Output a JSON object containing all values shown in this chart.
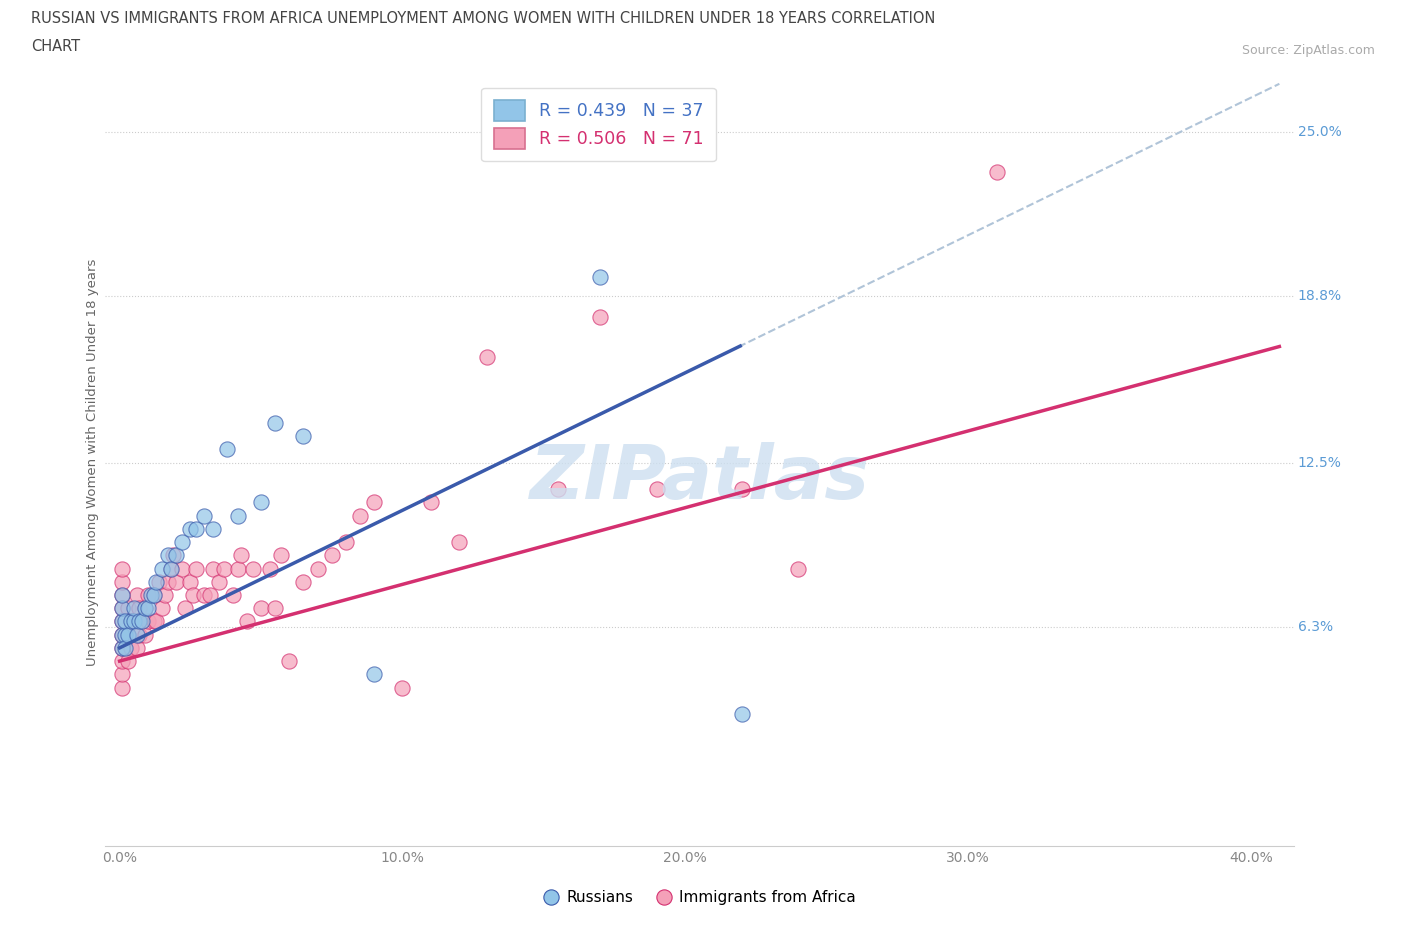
{
  "title_line1": "RUSSIAN VS IMMIGRANTS FROM AFRICA UNEMPLOYMENT AMONG WOMEN WITH CHILDREN UNDER 18 YEARS CORRELATION",
  "title_line2": "CHART",
  "source": "Source: ZipAtlas.com",
  "ylabel": "Unemployment Among Women with Children Under 18 years",
  "xlabel_ticks": [
    "0.0%",
    "10.0%",
    "20.0%",
    "30.0%",
    "40.0%"
  ],
  "xlabel_vals": [
    0.0,
    0.1,
    0.2,
    0.3,
    0.4
  ],
  "ylabel_right_labels": [
    "6.3%",
    "12.5%",
    "18.8%",
    "25.0%"
  ],
  "ylabel_right_vals": [
    0.063,
    0.125,
    0.188,
    0.25
  ],
  "ylim": [
    -0.02,
    0.27
  ],
  "xlim": [
    -0.005,
    0.415
  ],
  "blue_scatter_color": "#92c5e8",
  "blue_line_color": "#3a5aab",
  "blue_dashed_color": "#b0c4d8",
  "pink_scatter_color": "#f4a0b8",
  "pink_line_color": "#d43070",
  "watermark_color": "#cddff0",
  "right_label_color": "#5b9bd5",
  "russians_R": "0.439",
  "russians_N": "37",
  "africa_R": "0.506",
  "africa_N": "71",
  "russians_x": [
    0.001,
    0.001,
    0.001,
    0.001,
    0.001,
    0.002,
    0.002,
    0.002,
    0.003,
    0.004,
    0.005,
    0.005,
    0.006,
    0.007,
    0.008,
    0.009,
    0.01,
    0.011,
    0.012,
    0.013,
    0.015,
    0.017,
    0.018,
    0.02,
    0.022,
    0.025,
    0.027,
    0.03,
    0.033,
    0.038,
    0.042,
    0.05,
    0.055,
    0.065,
    0.09,
    0.17,
    0.22
  ],
  "russians_y": [
    0.055,
    0.06,
    0.065,
    0.07,
    0.075,
    0.06,
    0.065,
    0.055,
    0.06,
    0.065,
    0.065,
    0.07,
    0.06,
    0.065,
    0.065,
    0.07,
    0.07,
    0.075,
    0.075,
    0.08,
    0.085,
    0.09,
    0.085,
    0.09,
    0.095,
    0.1,
    0.1,
    0.105,
    0.1,
    0.13,
    0.105,
    0.11,
    0.14,
    0.135,
    0.045,
    0.195,
    0.03
  ],
  "africa_x": [
    0.001,
    0.001,
    0.001,
    0.001,
    0.001,
    0.001,
    0.001,
    0.001,
    0.001,
    0.001,
    0.003,
    0.003,
    0.003,
    0.004,
    0.004,
    0.006,
    0.006,
    0.006,
    0.007,
    0.007,
    0.008,
    0.009,
    0.009,
    0.01,
    0.01,
    0.012,
    0.012,
    0.013,
    0.014,
    0.015,
    0.016,
    0.017,
    0.018,
    0.019,
    0.02,
    0.022,
    0.023,
    0.025,
    0.026,
    0.027,
    0.03,
    0.032,
    0.033,
    0.035,
    0.037,
    0.04,
    0.042,
    0.043,
    0.045,
    0.047,
    0.05,
    0.053,
    0.055,
    0.057,
    0.06,
    0.065,
    0.07,
    0.075,
    0.08,
    0.085,
    0.09,
    0.1,
    0.11,
    0.12,
    0.13,
    0.155,
    0.17,
    0.19,
    0.22,
    0.24,
    0.31
  ],
  "africa_y": [
    0.04,
    0.045,
    0.05,
    0.055,
    0.06,
    0.065,
    0.07,
    0.075,
    0.08,
    0.085,
    0.05,
    0.06,
    0.07,
    0.055,
    0.065,
    0.055,
    0.065,
    0.075,
    0.06,
    0.07,
    0.065,
    0.06,
    0.07,
    0.065,
    0.075,
    0.065,
    0.075,
    0.065,
    0.08,
    0.07,
    0.075,
    0.08,
    0.085,
    0.09,
    0.08,
    0.085,
    0.07,
    0.08,
    0.075,
    0.085,
    0.075,
    0.075,
    0.085,
    0.08,
    0.085,
    0.075,
    0.085,
    0.09,
    0.065,
    0.085,
    0.07,
    0.085,
    0.07,
    0.09,
    0.05,
    0.08,
    0.085,
    0.09,
    0.095,
    0.105,
    0.11,
    0.04,
    0.11,
    0.095,
    0.165,
    0.115,
    0.18,
    0.115,
    0.115,
    0.085,
    0.235
  ],
  "reg_blue_slope": 0.52,
  "reg_blue_intercept": 0.055,
  "reg_pink_slope": 0.29,
  "reg_pink_intercept": 0.05
}
